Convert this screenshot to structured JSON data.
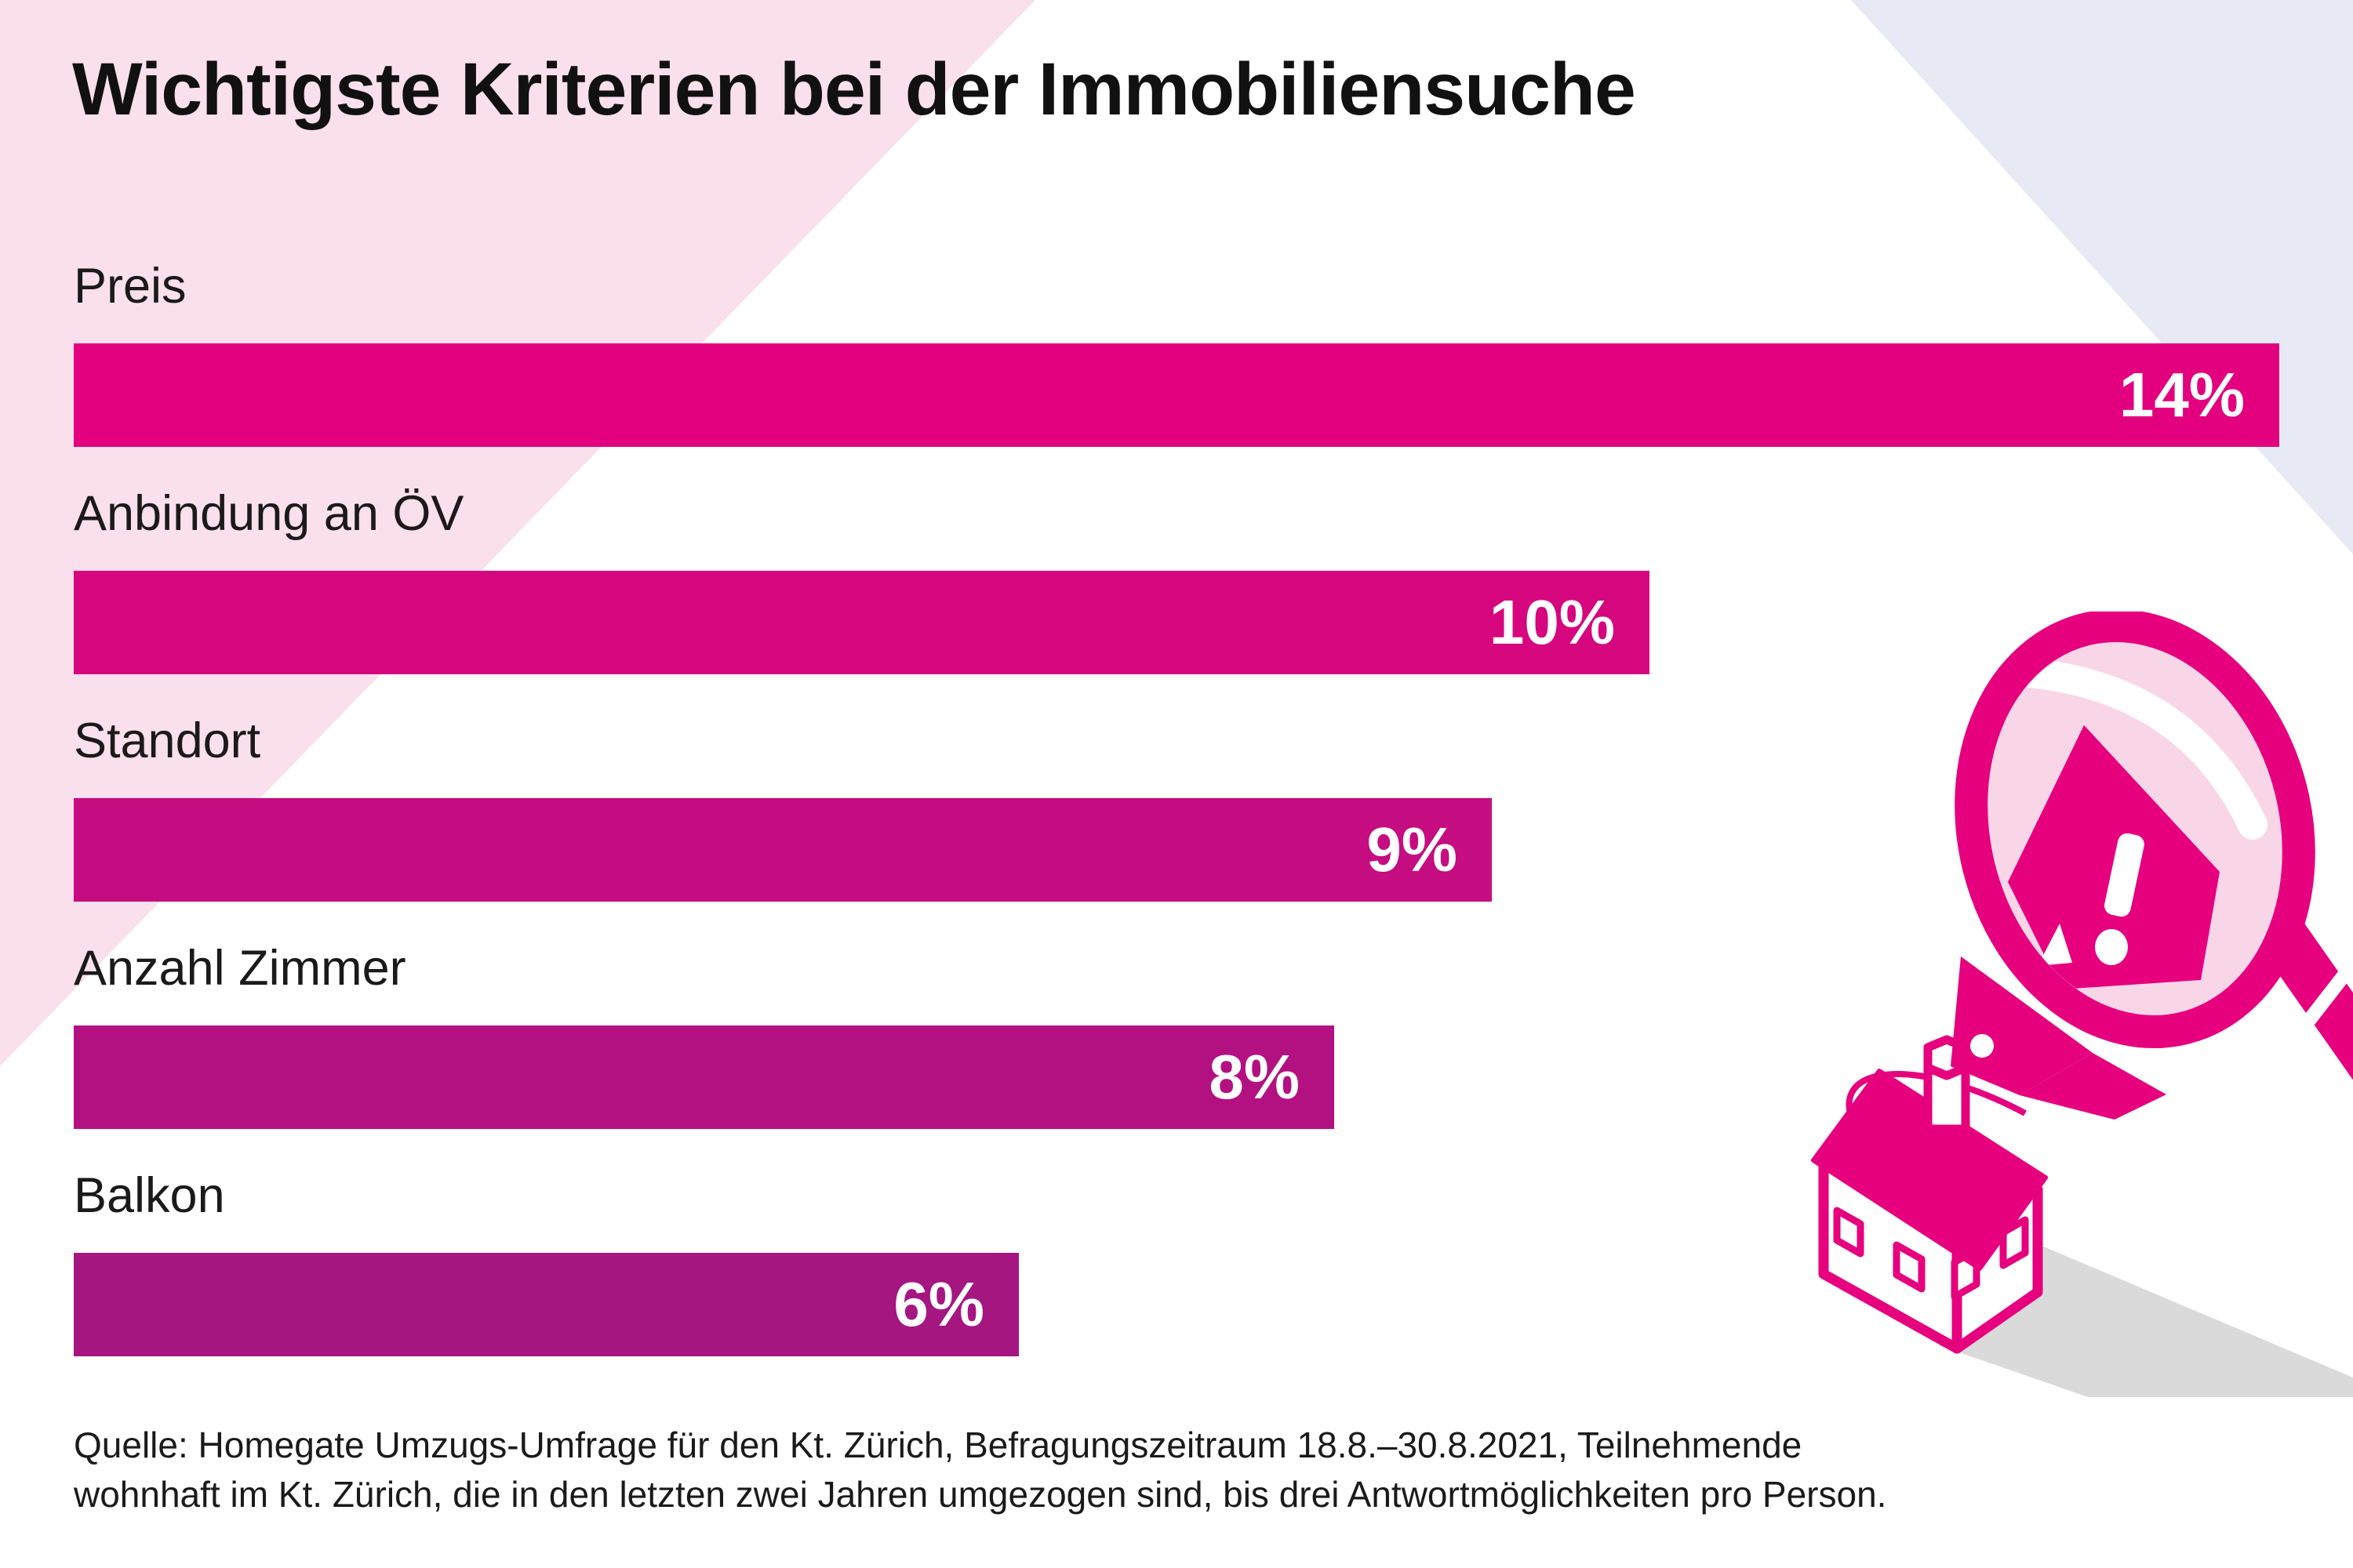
{
  "title": "Wichtigste Kriterien bei der Immobiliensuche",
  "chart_data": {
    "type": "bar",
    "orientation": "horizontal",
    "title": "Wichtigste Kriterien bei der Immobiliensuche",
    "categories": [
      "Preis",
      "Anbindung an ÖV",
      "Standort",
      "Anzahl Zimmer",
      "Balkon"
    ],
    "values": [
      14,
      10,
      9,
      8,
      6
    ],
    "unit": "%",
    "value_labels": [
      "14%",
      "10%",
      "9%",
      "8%",
      "6%"
    ],
    "value_label_position": "inside-end",
    "bar_colors": [
      "#E2007E",
      "#D5067E",
      "#C50C80",
      "#B31181",
      "#A51681"
    ],
    "xlim": [
      0,
      14
    ],
    "grid": false,
    "legend": false,
    "axis_ticks": "none"
  },
  "source": {
    "line1": "Quelle: Homegate Umzugs-Umfrage für den Kt. Zürich, Befragungszeitraum 18.8.–30.8.2021, Teilnehmende",
    "line2": "wohnhaft im Kt. Zürich, die in den letzten zwei Jahren umgezogen sind, bis drei Antwortmöglichkeiten pro Person."
  },
  "colors": {
    "accent_pink": "#E6007E",
    "background_pink_triangle": "#FADFEC",
    "background_lavender_triangle": "#E7EAF4",
    "lens_light_pink": "#F9D6E7",
    "shadow_grey": "#DADADA",
    "text": "#1A1A1A",
    "value_text": "#FFFFFF"
  },
  "illustration": {
    "icons": [
      "magnifying-glass-icon",
      "exclamation-mark-icon",
      "house-icon",
      "house-shadow"
    ]
  }
}
